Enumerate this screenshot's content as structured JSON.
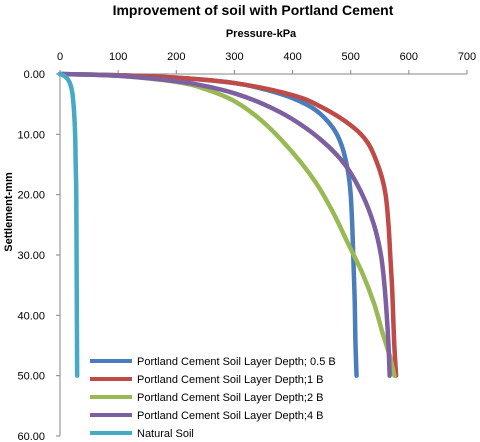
{
  "chart_data": {
    "type": "line",
    "title": "Improvement of soil with Portland Cement",
    "xlabel": "Pressure-kPa",
    "ylabel": "Settlement-mm",
    "x_axis_position": "top",
    "y_axis_reversed": true,
    "xlim": [
      0,
      700
    ],
    "ylim": [
      0,
      60
    ],
    "x_ticks": [
      "0",
      "100",
      "200",
      "300",
      "400",
      "500",
      "600",
      "700"
    ],
    "y_ticks": [
      "0.00",
      "10.00",
      "20.00",
      "30.00",
      "40.00",
      "50.00",
      "60.00"
    ],
    "grid": false,
    "legend_position": "bottom-left",
    "series": [
      {
        "name": "Portland Cement Soil Layer Depth; 0.5 B",
        "color": "#4a7ebb",
        "points": [
          [
            0,
            0
          ],
          [
            100,
            0.2
          ],
          [
            200,
            0.6
          ],
          [
            300,
            1.5
          ],
          [
            350,
            2.5
          ],
          [
            400,
            4
          ],
          [
            440,
            6
          ],
          [
            470,
            9
          ],
          [
            485,
            12
          ],
          [
            495,
            16
          ],
          [
            500,
            20
          ],
          [
            503,
            26
          ],
          [
            505,
            32
          ],
          [
            507,
            38
          ],
          [
            508,
            44
          ],
          [
            510,
            50
          ]
        ]
      },
      {
        "name": "Portland Cement Soil Layer Depth;1 B",
        "color": "#be4b48",
        "points": [
          [
            0,
            0
          ],
          [
            100,
            0.2
          ],
          [
            200,
            0.6
          ],
          [
            300,
            1.5
          ],
          [
            400,
            3.5
          ],
          [
            450,
            5.5
          ],
          [
            500,
            8.5
          ],
          [
            530,
            11.5
          ],
          [
            550,
            16
          ],
          [
            560,
            20
          ],
          [
            565,
            25
          ],
          [
            568,
            30
          ],
          [
            571,
            35
          ],
          [
            573,
            40
          ],
          [
            575,
            45
          ],
          [
            578,
            50
          ]
        ]
      },
      {
        "name": "Portland Cement Soil Layer Depth;2 B",
        "color": "#98b954",
        "points": [
          [
            0,
            0
          ],
          [
            100,
            0.3
          ],
          [
            200,
            1.3
          ],
          [
            250,
            2.5
          ],
          [
            300,
            4.5
          ],
          [
            350,
            8
          ],
          [
            400,
            13
          ],
          [
            440,
            18
          ],
          [
            470,
            23
          ],
          [
            495,
            28
          ],
          [
            520,
            33
          ],
          [
            540,
            38
          ],
          [
            555,
            43
          ],
          [
            568,
            47
          ],
          [
            575,
            50
          ]
        ]
      },
      {
        "name": "Portland Cement Soil Layer Depth;4 B",
        "color": "#7d60a0",
        "points": [
          [
            0,
            0
          ],
          [
            100,
            0.3
          ],
          [
            200,
            1.2
          ],
          [
            250,
            2
          ],
          [
            300,
            3.2
          ],
          [
            350,
            5
          ],
          [
            400,
            7.5
          ],
          [
            450,
            11
          ],
          [
            490,
            15
          ],
          [
            520,
            20
          ],
          [
            540,
            25
          ],
          [
            552,
            30
          ],
          [
            558,
            35
          ],
          [
            562,
            40
          ],
          [
            565,
            45
          ],
          [
            567,
            50
          ]
        ]
      },
      {
        "name": "Natural Soil",
        "color": "#46aac5",
        "points": [
          [
            0,
            0
          ],
          [
            3,
            0.1
          ],
          [
            7,
            0.3
          ],
          [
            12,
            0.7
          ],
          [
            17,
            1.5
          ],
          [
            21,
            3
          ],
          [
            24,
            6
          ],
          [
            26,
            10
          ],
          [
            27,
            15
          ],
          [
            28,
            20
          ],
          [
            28.5,
            30
          ],
          [
            29,
            40
          ],
          [
            29.5,
            50
          ]
        ]
      }
    ]
  }
}
